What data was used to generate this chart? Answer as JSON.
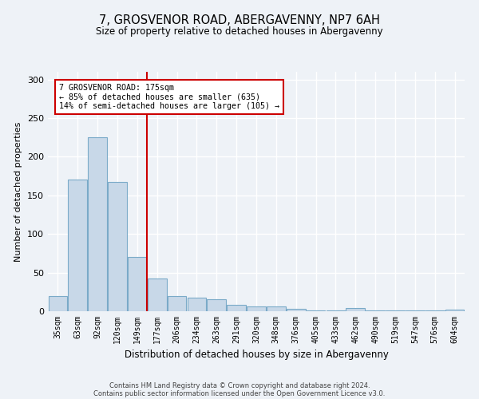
{
  "title1": "7, GROSVENOR ROAD, ABERGAVENNY, NP7 6AH",
  "title2": "Size of property relative to detached houses in Abergavenny",
  "xlabel": "Distribution of detached houses by size in Abergavenny",
  "ylabel": "Number of detached properties",
  "categories": [
    "35sqm",
    "63sqm",
    "92sqm",
    "120sqm",
    "149sqm",
    "177sqm",
    "206sqm",
    "234sqm",
    "263sqm",
    "291sqm",
    "320sqm",
    "348sqm",
    "376sqm",
    "405sqm",
    "433sqm",
    "462sqm",
    "490sqm",
    "519sqm",
    "547sqm",
    "576sqm",
    "604sqm"
  ],
  "values": [
    20,
    170,
    225,
    167,
    70,
    42,
    20,
    18,
    16,
    8,
    6,
    6,
    3,
    1,
    1,
    4,
    1,
    1,
    1,
    1,
    2
  ],
  "bar_color": "#c8d8e8",
  "bar_edge_color": "#7aaac8",
  "vline_index": 5,
  "vline_color": "#cc0000",
  "annotation_title": "7 GROSVENOR ROAD: 175sqm",
  "annotation_line1": "← 85% of detached houses are smaller (635)",
  "annotation_line2": "14% of semi-detached houses are larger (105) →",
  "annotation_box_color": "#cc0000",
  "ylim": [
    0,
    310
  ],
  "yticks": [
    0,
    50,
    100,
    150,
    200,
    250,
    300
  ],
  "footer1": "Contains HM Land Registry data © Crown copyright and database right 2024.",
  "footer2": "Contains public sector information licensed under the Open Government Licence v3.0.",
  "bg_color": "#eef2f7",
  "grid_color": "#d8e0ea"
}
